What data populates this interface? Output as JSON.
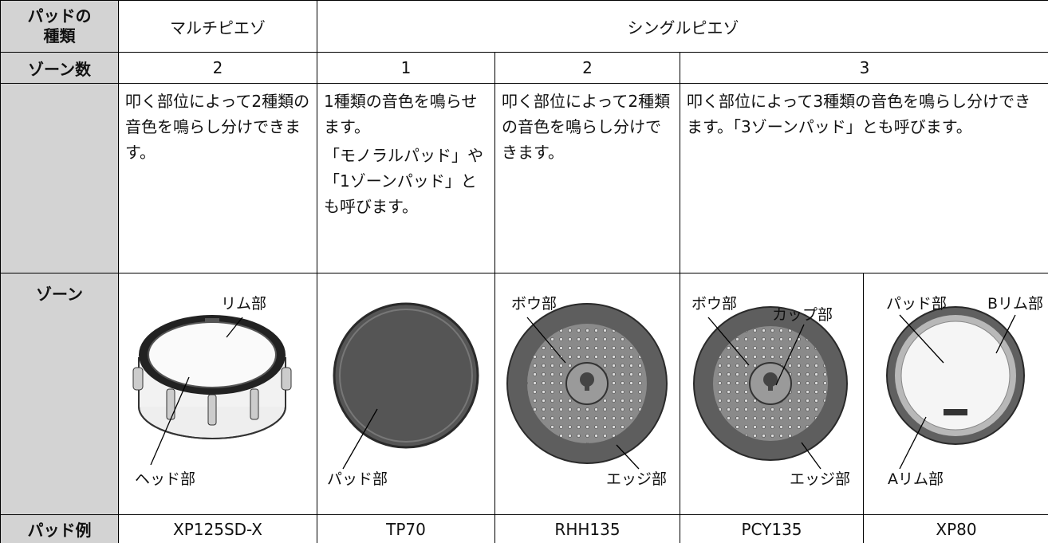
{
  "table": {
    "rows": [
      {
        "header": "パッドの種類",
        "cells": [
          "マルチピエゾ",
          "シングルピエゾ"
        ]
      },
      {
        "header": "ゾーン数",
        "cells": [
          "2",
          "1",
          "2",
          "3"
        ]
      },
      {
        "cells": [
          [
            "叩く部位によって2種類の音色を鳴らし分けできます。"
          ],
          [
            "1種類の音色を鳴らせます。",
            "「モノラルパッド」や「1ゾーンパッド」とも呼びます。"
          ],
          [
            "叩く部位によって2種類の音色を鳴らし分けできます。"
          ],
          [
            "叩く部位によって3種類の音色を鳴らし分けできます。「3ゾーンパッド」とも呼びます。"
          ]
        ]
      },
      {
        "header": "ゾーン",
        "cells": [
          [
            "リム部",
            "ヘッド部"
          ],
          [
            "パッド部"
          ],
          [
            "ボウ部",
            "エッジ部"
          ],
          [
            "ボウ部",
            "カップ部",
            "エッジ部"
          ],
          [
            "パッド部",
            "Bリム部",
            "Aリム部"
          ]
        ]
      },
      {
        "header": "パッド例",
        "cells": [
          "XP125SD-X",
          "TP70",
          "RHH135",
          "PCY135",
          "XP80"
        ]
      }
    ]
  }
}
